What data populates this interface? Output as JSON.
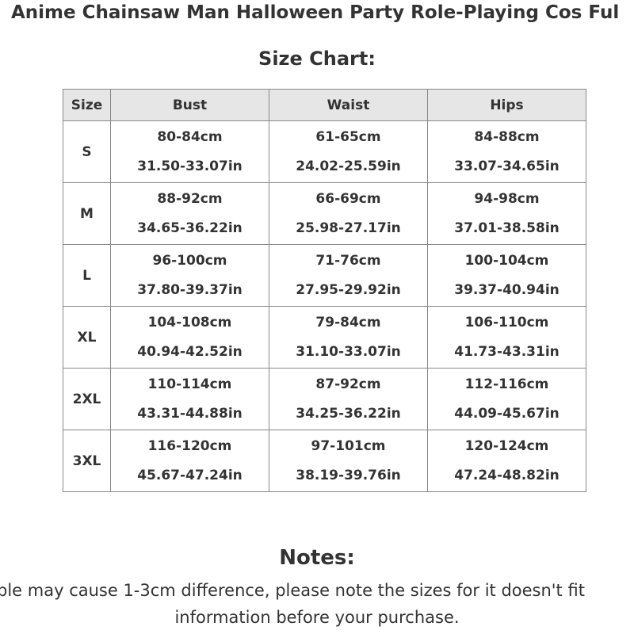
{
  "product_title": "Anime Chainsaw Man Halloween Party Role-Playing Cos Ful",
  "size_chart": {
    "heading": "Size Chart:",
    "headers": {
      "size": "Size",
      "bust": "Bust",
      "waist": "Waist",
      "hips": "Hips"
    },
    "rows": [
      {
        "size": "S",
        "bust_cm": "80-84cm",
        "bust_in": "31.50-33.07in",
        "waist_cm": "61-65cm",
        "waist_in": "24.02-25.59in",
        "hips_cm": "84-88cm",
        "hips_in": "33.07-34.65in"
      },
      {
        "size": "M",
        "bust_cm": "88-92cm",
        "bust_in": "34.65-36.22in",
        "waist_cm": "66-69cm",
        "waist_in": "25.98-27.17in",
        "hips_cm": "94-98cm",
        "hips_in": "37.01-38.58in"
      },
      {
        "size": "L",
        "bust_cm": "96-100cm",
        "bust_in": "37.80-39.37in",
        "waist_cm": "71-76cm",
        "waist_in": "27.95-29.92in",
        "hips_cm": "100-104cm",
        "hips_in": "39.37-40.94in"
      },
      {
        "size": "XL",
        "bust_cm": "104-108cm",
        "bust_in": "40.94-42.52in",
        "waist_cm": "79-84cm",
        "waist_in": "31.10-33.07in",
        "hips_cm": "106-110cm",
        "hips_in": "41.73-43.31in"
      },
      {
        "size": "2XL",
        "bust_cm": "110-114cm",
        "bust_in": "43.31-44.88in",
        "waist_cm": "87-92cm",
        "waist_in": "34.25-36.22in",
        "hips_cm": "112-116cm",
        "hips_in": "44.09-45.67in"
      },
      {
        "size": "3XL",
        "bust_cm": "116-120cm",
        "bust_in": "45.67-47.24in",
        "waist_cm": "97-101cm",
        "waist_in": "38.19-39.76in",
        "hips_cm": "120-124cm",
        "hips_in": "47.24-48.82in"
      }
    ]
  },
  "notes": {
    "heading": "Notes:",
    "line1": "ble may cause 1-3cm difference, please note the sizes for it doesn't fit",
    "line2": "information before your purchase."
  },
  "colors": {
    "text": "#333333",
    "header_bg": "#e6e6e6",
    "border": "#888888",
    "background": "#ffffff"
  }
}
